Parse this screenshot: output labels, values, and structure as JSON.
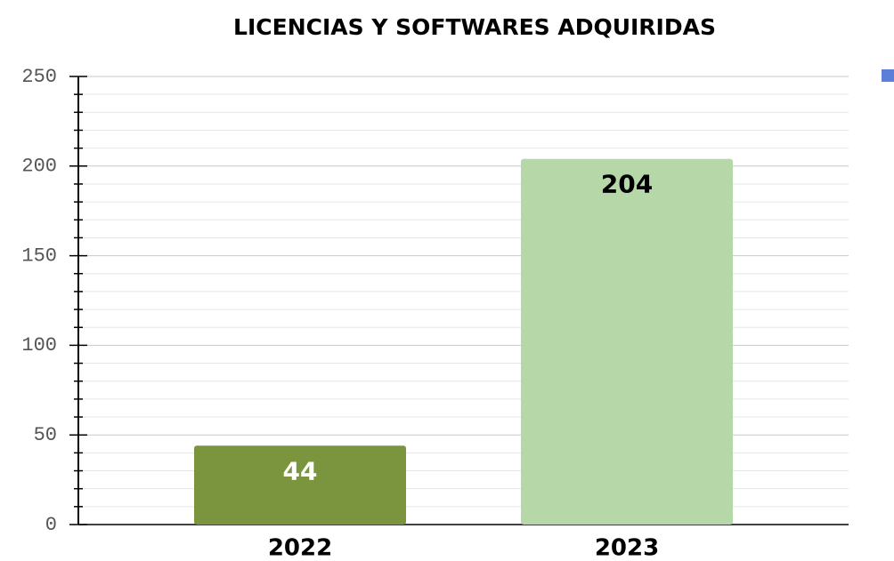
{
  "chart_data": {
    "type": "bar",
    "title": "LICENCIAS Y SOFTWARES ADQUIRIDAS",
    "categories": [
      "2022",
      "2023"
    ],
    "values": [
      44,
      204
    ],
    "colors": [
      "#7a953d",
      "#b6d7a8"
    ],
    "label_colors": [
      "#ffffff",
      "#000000"
    ],
    "legend_color": "#5b7fd6",
    "ylim": [
      0,
      250
    ],
    "yticks": [
      0,
      50,
      100,
      150,
      200,
      250
    ],
    "yminorticks": [
      10,
      20,
      30,
      40,
      60,
      70,
      80,
      90,
      110,
      120,
      130,
      140,
      160,
      170,
      180,
      190,
      210,
      220,
      230,
      240
    ],
    "grid": true
  }
}
